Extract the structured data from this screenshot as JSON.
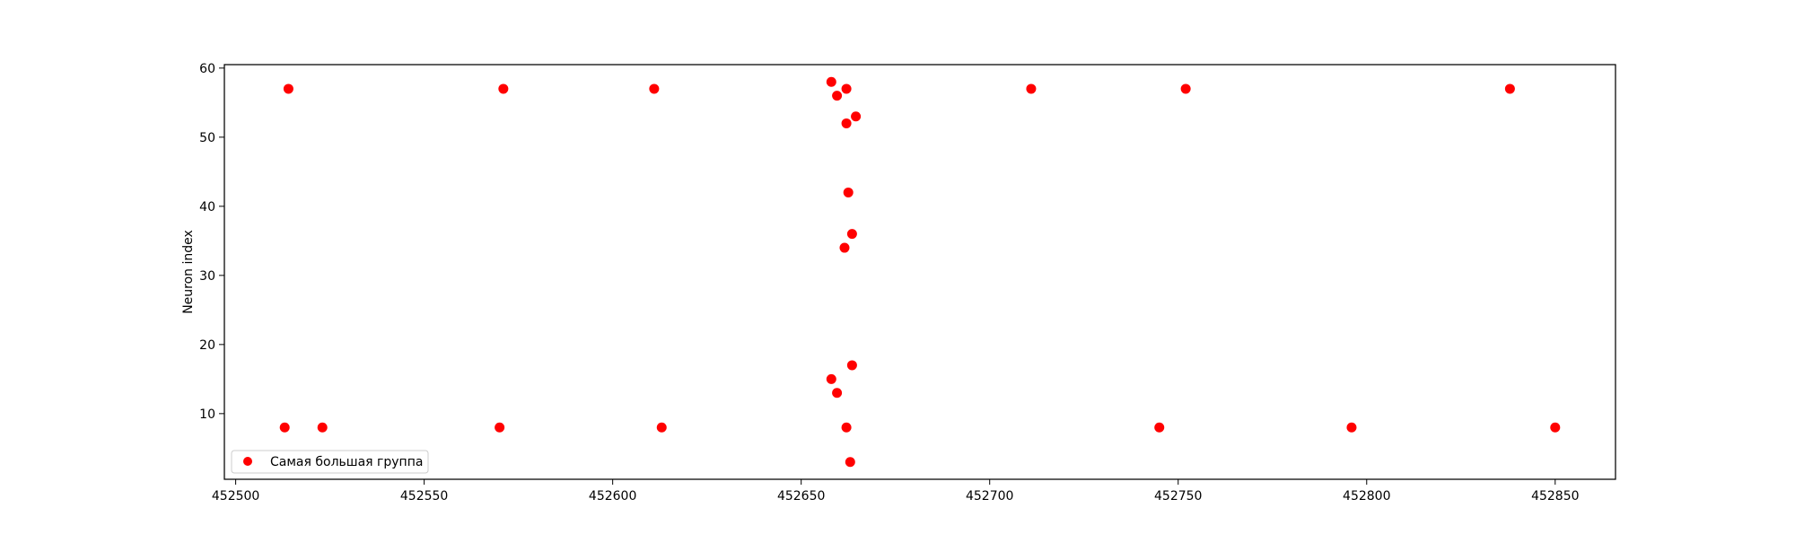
{
  "chart_data": {
    "type": "scatter",
    "title": "",
    "xlabel": "",
    "ylabel": "Neuron index",
    "xlim": [
      452497,
      452866
    ],
    "ylim": [
      0.5,
      60.5
    ],
    "xticks": [
      452500,
      452550,
      452600,
      452650,
      452700,
      452750,
      452800,
      452850
    ],
    "yticks": [
      10,
      20,
      30,
      40,
      50,
      60
    ],
    "grid": false,
    "legend_position": "lower-left",
    "series": [
      {
        "name": "Самая большая группа",
        "color": "#ff0000",
        "points": [
          {
            "x": 452514,
            "y": 57
          },
          {
            "x": 452571,
            "y": 57
          },
          {
            "x": 452611,
            "y": 57
          },
          {
            "x": 452658,
            "y": 58
          },
          {
            "x": 452662,
            "y": 57
          },
          {
            "x": 452659.5,
            "y": 56
          },
          {
            "x": 452664.5,
            "y": 53
          },
          {
            "x": 452662,
            "y": 52
          },
          {
            "x": 452662.5,
            "y": 42
          },
          {
            "x": 452663.5,
            "y": 36
          },
          {
            "x": 452661.5,
            "y": 34
          },
          {
            "x": 452711,
            "y": 57
          },
          {
            "x": 452752,
            "y": 57
          },
          {
            "x": 452838,
            "y": 57
          },
          {
            "x": 452663.5,
            "y": 17
          },
          {
            "x": 452658,
            "y": 15
          },
          {
            "x": 452659.5,
            "y": 13
          },
          {
            "x": 452513,
            "y": 8
          },
          {
            "x": 452523,
            "y": 8
          },
          {
            "x": 452570,
            "y": 8
          },
          {
            "x": 452613,
            "y": 8
          },
          {
            "x": 452662,
            "y": 8
          },
          {
            "x": 452745,
            "y": 8
          },
          {
            "x": 452796,
            "y": 8
          },
          {
            "x": 452850,
            "y": 8
          },
          {
            "x": 452663,
            "y": 3
          }
        ]
      }
    ]
  }
}
